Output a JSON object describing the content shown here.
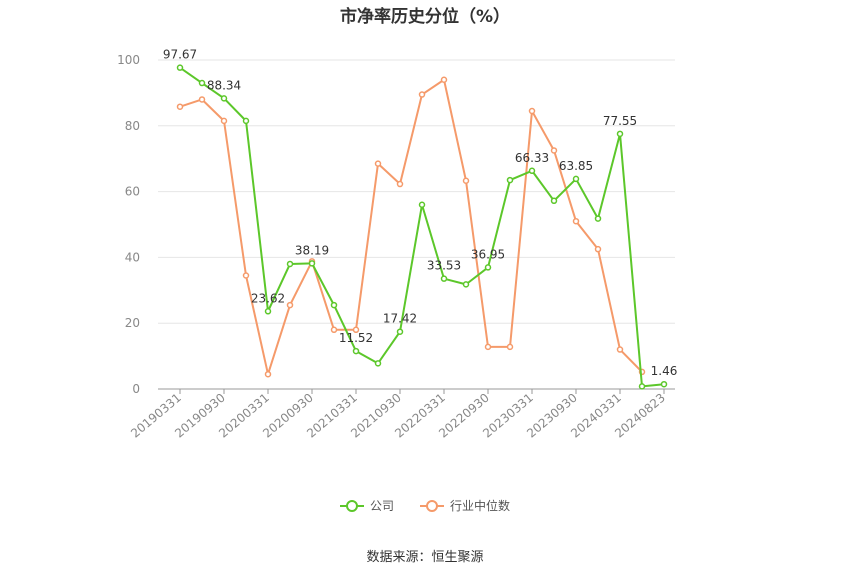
{
  "chart_data": {
    "type": "line",
    "title": "市净率历史分位（%）",
    "ylim": [
      0,
      100
    ],
    "yticks": [
      0,
      20,
      40,
      60,
      80,
      100
    ],
    "x_tick_labels": [
      "20190331",
      "20190930",
      "20200331",
      "20200930",
      "20210331",
      "20210930",
      "20220331",
      "20220930",
      "20230331",
      "20230930",
      "20240331",
      "20240823"
    ],
    "x": [
      "20190331",
      "20190630",
      "20190930",
      "20191231",
      "20200331",
      "20200630",
      "20200930",
      "20201231",
      "20210331",
      "20210630",
      "20210930",
      "20211231",
      "20220331",
      "20220630",
      "20220930",
      "20221231",
      "20230331",
      "20230630",
      "20230930",
      "20231231",
      "20240331",
      "20240630",
      "20240823"
    ],
    "series": [
      {
        "name": "公司",
        "color": "#5cc72a",
        "values": [
          97.67,
          93,
          88.34,
          81.5,
          23.62,
          38,
          38.19,
          25.5,
          11.52,
          7.8,
          17.42,
          56,
          33.53,
          31.8,
          36.95,
          63.5,
          66.33,
          57.2,
          63.85,
          51.8,
          77.55,
          0.8,
          1.46
        ],
        "labels": {
          "0": "97.67",
          "2": "88.34",
          "4": "23.62",
          "6": "38.19",
          "8": "11.52",
          "10": "17.42",
          "12": "33.53",
          "14": "36.95",
          "16": "66.33",
          "18": "63.85",
          "20": "77.55",
          "22": "1.46"
        }
      },
      {
        "name": "行业中位数",
        "color": "#f59a6a",
        "values": [
          85.8,
          88,
          81.5,
          34.5,
          4.5,
          25.5,
          38.8,
          18,
          18,
          68.5,
          62.3,
          89.5,
          94,
          63.3,
          12.8,
          12.8,
          84.5,
          72.5,
          51,
          42.5,
          12,
          5.2,
          null
        ]
      }
    ],
    "grid": true,
    "legend_position": "bottom"
  },
  "source_text": "数据来源：恒生聚源"
}
